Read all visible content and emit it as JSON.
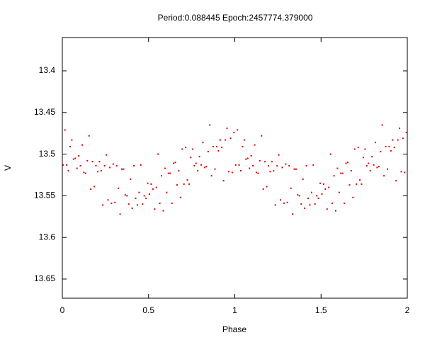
{
  "chart_data": {
    "type": "scatter",
    "title": "Period:0.088445 Epoch:2457774.379000",
    "x_label": "Phase",
    "y_label": "V",
    "xlim": [
      0,
      2
    ],
    "ylim": [
      13.673,
      13.36
    ],
    "y_inverted": true,
    "xticks": [
      0,
      0.5,
      1,
      1.5,
      2
    ],
    "yticks": [
      13.4,
      13.45,
      13.5,
      13.55,
      13.6,
      13.65
    ],
    "grid": false,
    "series": [
      {
        "color": "#e00000",
        "x": [
          0.005,
          0.015,
          0.025,
          0.035,
          0.045,
          0.055,
          0.065,
          0.075,
          0.085,
          0.095,
          0.105,
          0.115,
          0.125,
          0.135,
          0.145,
          0.155,
          0.165,
          0.175,
          0.185,
          0.195,
          0.205,
          0.215,
          0.225,
          0.235,
          0.245,
          0.255,
          0.265,
          0.275,
          0.285,
          0.295,
          0.305,
          0.315,
          0.325,
          0.335,
          0.345,
          0.355,
          0.365,
          0.375,
          0.385,
          0.395,
          0.405,
          0.415,
          0.425,
          0.435,
          0.445,
          0.455,
          0.465,
          0.475,
          0.485,
          0.495,
          0.505,
          0.515,
          0.525,
          0.535,
          0.545,
          0.555,
          0.565,
          0.575,
          0.585,
          0.595,
          0.605,
          0.615,
          0.625,
          0.635,
          0.645,
          0.655,
          0.665,
          0.675,
          0.685,
          0.695,
          0.705,
          0.715,
          0.725,
          0.735,
          0.745,
          0.755,
          0.765,
          0.775,
          0.785,
          0.795,
          0.805,
          0.815,
          0.825,
          0.835,
          0.845,
          0.855,
          0.865,
          0.875,
          0.885,
          0.895,
          0.905,
          0.915,
          0.925,
          0.935,
          0.945,
          0.955,
          0.965,
          0.975,
          0.985,
          0.995,
          1.005,
          1.015,
          1.025,
          1.035,
          1.045,
          1.055,
          1.065,
          1.075,
          1.085,
          1.095,
          1.105,
          1.115,
          1.125,
          1.135,
          1.145,
          1.155,
          1.165,
          1.175,
          1.185,
          1.195,
          1.205,
          1.215,
          1.225,
          1.235,
          1.245,
          1.255,
          1.265,
          1.275,
          1.285,
          1.295,
          1.305,
          1.315,
          1.325,
          1.335,
          1.345,
          1.355,
          1.365,
          1.375,
          1.385,
          1.395,
          1.405,
          1.415,
          1.425,
          1.435,
          1.445,
          1.455,
          1.465,
          1.475,
          1.485,
          1.495,
          1.505,
          1.515,
          1.525,
          1.535,
          1.545,
          1.555,
          1.565,
          1.575,
          1.585,
          1.595,
          1.605,
          1.615,
          1.625,
          1.635,
          1.645,
          1.655,
          1.665,
          1.675,
          1.685,
          1.695,
          1.705,
          1.715,
          1.725,
          1.735,
          1.745,
          1.755,
          1.765,
          1.775,
          1.785,
          1.795,
          1.805,
          1.815,
          1.825,
          1.835,
          1.845,
          1.855,
          1.865,
          1.875,
          1.885,
          1.895,
          1.905,
          1.915,
          1.925,
          1.935,
          1.945,
          1.955,
          1.965,
          1.975,
          1.985,
          1.995
        ],
        "values": [
          13.513,
          13.471,
          13.513,
          13.52,
          13.491,
          13.483,
          13.506,
          13.505,
          13.517,
          13.502,
          13.514,
          13.489,
          13.522,
          13.523,
          13.508,
          13.478,
          13.542,
          13.509,
          13.539,
          13.514,
          13.521,
          13.509,
          13.52,
          13.561,
          13.514,
          13.501,
          13.555,
          13.516,
          13.559,
          13.512,
          13.558,
          13.514,
          13.541,
          13.572,
          13.518,
          13.518,
          13.549,
          13.55,
          13.56,
          13.53,
          13.565,
          13.514,
          13.553,
          13.561,
          13.546,
          13.513,
          13.56,
          13.55,
          13.553,
          13.535,
          13.548,
          13.536,
          13.542,
          13.566,
          13.54,
          13.5,
          13.559,
          13.526,
          13.568,
          13.517,
          13.546,
          13.523,
          13.523,
          13.559,
          13.511,
          13.51,
          13.537,
          13.52,
          13.552,
          13.494,
          13.536,
          13.492,
          13.531,
          13.536,
          13.504,
          13.494,
          13.514,
          13.511,
          13.52,
          13.503,
          13.513,
          13.486,
          13.516,
          13.515,
          13.497,
          13.465,
          13.526,
          13.491,
          13.518,
          13.491,
          13.496,
          13.483,
          13.492,
          13.532,
          13.483,
          13.469,
          13.521,
          13.481,
          13.522,
          13.474,
          13.513,
          13.471,
          13.513,
          13.52,
          13.491,
          13.483,
          13.506,
          13.505,
          13.517,
          13.502,
          13.514,
          13.489,
          13.522,
          13.523,
          13.508,
          13.478,
          13.542,
          13.509,
          13.539,
          13.514,
          13.521,
          13.509,
          13.52,
          13.561,
          13.514,
          13.501,
          13.555,
          13.516,
          13.559,
          13.512,
          13.558,
          13.514,
          13.541,
          13.572,
          13.518,
          13.518,
          13.549,
          13.55,
          13.56,
          13.53,
          13.565,
          13.514,
          13.553,
          13.561,
          13.546,
          13.513,
          13.56,
          13.55,
          13.553,
          13.535,
          13.548,
          13.536,
          13.542,
          13.566,
          13.54,
          13.5,
          13.559,
          13.526,
          13.568,
          13.517,
          13.546,
          13.523,
          13.523,
          13.559,
          13.511,
          13.51,
          13.537,
          13.52,
          13.552,
          13.494,
          13.536,
          13.492,
          13.531,
          13.536,
          13.504,
          13.494,
          13.514,
          13.511,
          13.52,
          13.503,
          13.513,
          13.486,
          13.516,
          13.515,
          13.497,
          13.465,
          13.526,
          13.491,
          13.518,
          13.491,
          13.496,
          13.483,
          13.492,
          13.532,
          13.483,
          13.469,
          13.521,
          13.481,
          13.522,
          13.474
        ]
      }
    ]
  }
}
